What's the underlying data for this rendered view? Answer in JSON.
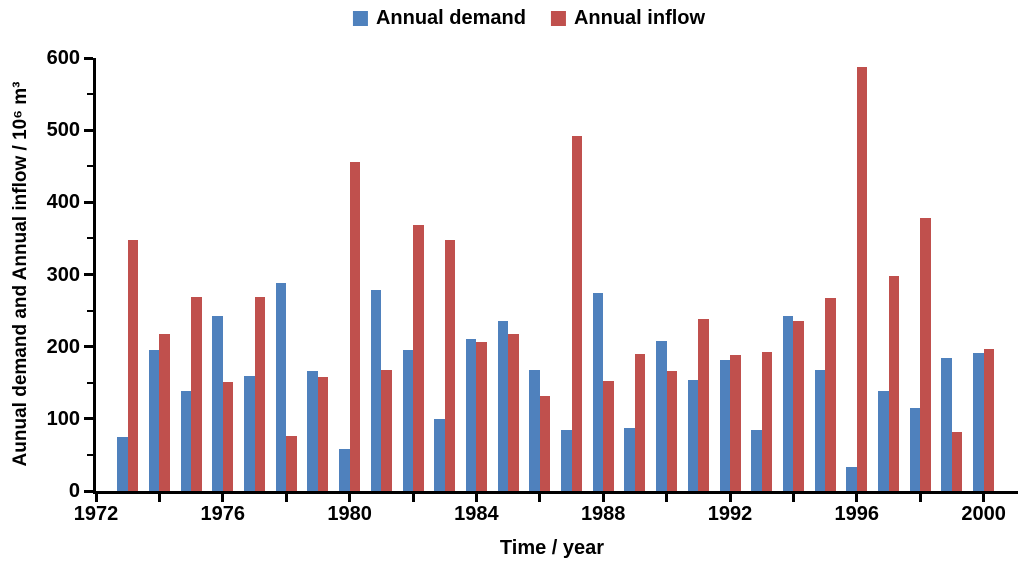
{
  "legend": {
    "items": [
      {
        "label": "Annual demand",
        "color": "#4F81BD"
      },
      {
        "label": "Annual inflow",
        "color": "#C0504D"
      }
    ]
  },
  "chart_data": {
    "type": "bar",
    "title": "",
    "xlabel": "Time / year",
    "ylabel": "Aunual demand and Annual inflow / 10⁶ m³",
    "categories": [
      "1973",
      "1974",
      "1975",
      "1976",
      "1977",
      "1978",
      "1979",
      "1980",
      "1981",
      "1982",
      "1983",
      "1984",
      "1985",
      "1986",
      "1987",
      "1988",
      "1989",
      "1990",
      "1991",
      "1992",
      "1993",
      "1994",
      "1995",
      "1996",
      "1997",
      "1998",
      "1999",
      "2000"
    ],
    "series": [
      {
        "name": "Annual demand",
        "color": "#4F81BD",
        "values": [
          75,
          196,
          139,
          243,
          160,
          288,
          166,
          58,
          278,
          196,
          100,
          210,
          235,
          168,
          85,
          274,
          88,
          208,
          154,
          182,
          84,
          243,
          168,
          33,
          139,
          115,
          184,
          191
        ]
      },
      {
        "name": "Annual inflow",
        "color": "#C0504D",
        "values": [
          348,
          217,
          269,
          151,
          269,
          76,
          158,
          456,
          167,
          368,
          348,
          207,
          218,
          132,
          492,
          152,
          190,
          166,
          238,
          188,
          192,
          236,
          268,
          587,
          298,
          378,
          82,
          197
        ]
      }
    ],
    "ylim": [
      0,
      600
    ],
    "y_tick_labels": [
      "0",
      "100",
      "200",
      "300",
      "400",
      "500",
      "600"
    ],
    "y_major_step": 100,
    "y_minor_step": 50,
    "x_axis_start_year": 1972,
    "x_tick_labels": [
      "1972",
      "1976",
      "1980",
      "1984",
      "1988",
      "1992",
      "1996",
      "2000"
    ],
    "x_minor_step": 2,
    "grid": false,
    "legend_position": "top-center"
  }
}
